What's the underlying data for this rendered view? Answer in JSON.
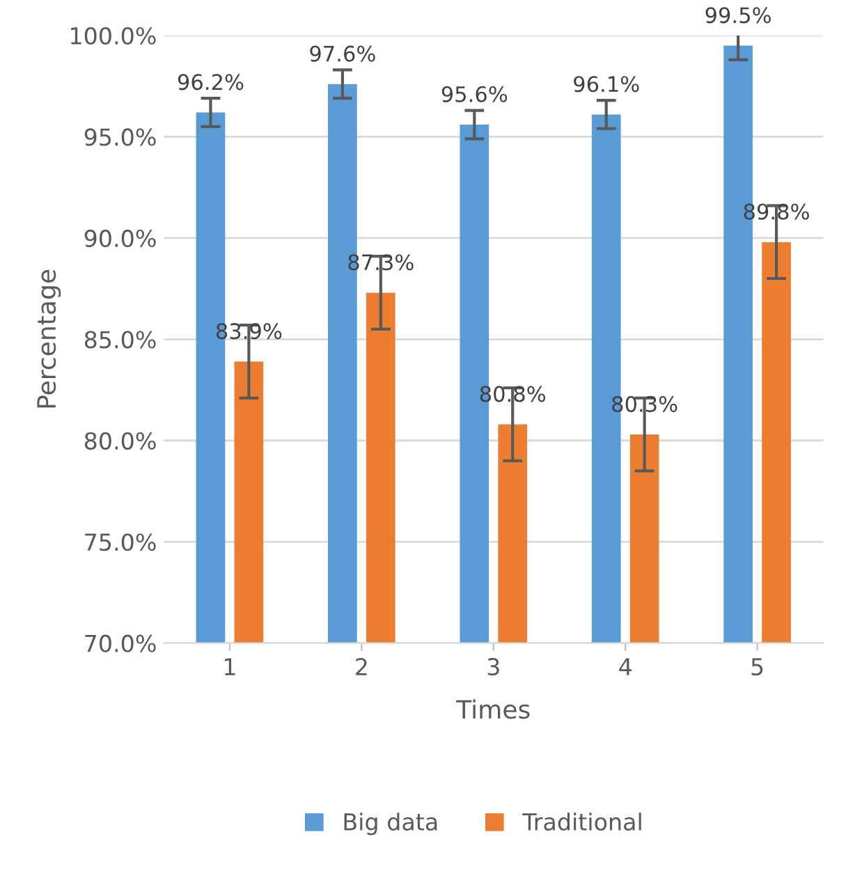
{
  "chart_data": {
    "type": "bar",
    "xlabel": "Times",
    "ylabel": "Percentage",
    "categories": [
      "1",
      "2",
      "3",
      "4",
      "5"
    ],
    "series": [
      {
        "name": "Big data",
        "color": "#5b9bd5",
        "values": [
          96.2,
          97.6,
          95.6,
          96.1,
          99.5
        ],
        "errors": [
          0.7,
          0.7,
          0.7,
          0.7,
          0.7
        ],
        "value_labels": [
          "96.2%",
          "97.6%",
          "95.6%",
          "96.1%",
          "99.5%"
        ]
      },
      {
        "name": "Traditional",
        "color": "#ed7d31",
        "values": [
          83.9,
          87.3,
          80.8,
          80.3,
          89.8
        ],
        "errors": [
          1.8,
          1.8,
          1.8,
          1.8,
          1.8
        ],
        "value_labels": [
          "83.9%",
          "87.3%",
          "80.8%",
          "80.3%",
          "89.8%"
        ]
      }
    ],
    "ylim": [
      70,
      100
    ],
    "yticks": [
      {
        "value": 70,
        "label": "70.0%"
      },
      {
        "value": 75,
        "label": "75.0%"
      },
      {
        "value": 80,
        "label": "80.0%"
      },
      {
        "value": 85,
        "label": "85.0%"
      },
      {
        "value": 90,
        "label": "90.0%"
      },
      {
        "value": 95,
        "label": "95.0%"
      },
      {
        "value": 100,
        "label": "100.0%"
      }
    ],
    "grid": "y",
    "legend": "bottom"
  }
}
